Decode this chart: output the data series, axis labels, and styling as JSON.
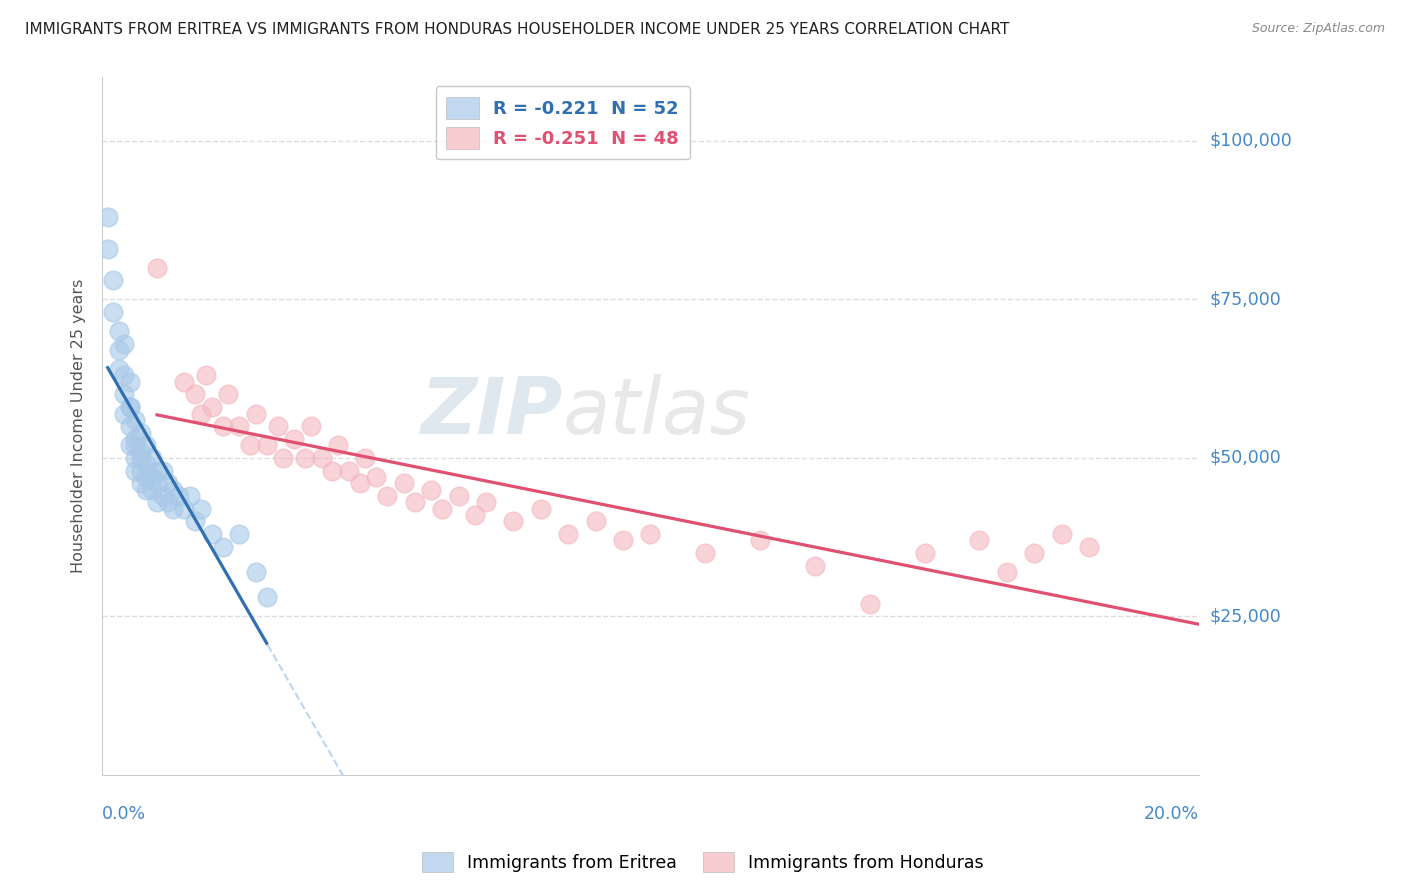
{
  "title": "IMMIGRANTS FROM ERITREA VS IMMIGRANTS FROM HONDURAS HOUSEHOLDER INCOME UNDER 25 YEARS CORRELATION CHART",
  "source": "Source: ZipAtlas.com",
  "ylabel": "Householder Income Under 25 years",
  "ytick_labels": [
    "$25,000",
    "$50,000",
    "$75,000",
    "$100,000"
  ],
  "ytick_values": [
    25000,
    50000,
    75000,
    100000
  ],
  "ylim": [
    0,
    110000
  ],
  "xlim": [
    0.0,
    0.2
  ],
  "legend_entries": [
    {
      "label": "R = -0.221  N = 52",
      "color": "#a8c8e8"
    },
    {
      "label": "R = -0.251  N = 48",
      "color": "#f4b8c0"
    }
  ],
  "watermark_zip": "ZIP",
  "watermark_atlas": "atlas",
  "eritrea_x": [
    0.001,
    0.001,
    0.002,
    0.002,
    0.003,
    0.003,
    0.003,
    0.004,
    0.004,
    0.004,
    0.004,
    0.005,
    0.005,
    0.005,
    0.005,
    0.005,
    0.006,
    0.006,
    0.006,
    0.006,
    0.006,
    0.007,
    0.007,
    0.007,
    0.007,
    0.007,
    0.008,
    0.008,
    0.008,
    0.008,
    0.009,
    0.009,
    0.009,
    0.01,
    0.01,
    0.01,
    0.011,
    0.011,
    0.012,
    0.012,
    0.013,
    0.013,
    0.014,
    0.015,
    0.016,
    0.017,
    0.018,
    0.02,
    0.022,
    0.025,
    0.028,
    0.03
  ],
  "eritrea_y": [
    88000,
    83000,
    78000,
    73000,
    70000,
    67000,
    64000,
    68000,
    63000,
    60000,
    57000,
    62000,
    58000,
    55000,
    52000,
    58000,
    56000,
    53000,
    50000,
    48000,
    52000,
    54000,
    51000,
    48000,
    46000,
    50000,
    52000,
    49000,
    47000,
    45000,
    50000,
    47000,
    45000,
    48000,
    46000,
    43000,
    48000,
    44000,
    46000,
    43000,
    45000,
    42000,
    44000,
    42000,
    44000,
    40000,
    42000,
    38000,
    36000,
    38000,
    32000,
    28000
  ],
  "honduras_x": [
    0.01,
    0.015,
    0.017,
    0.018,
    0.019,
    0.02,
    0.022,
    0.023,
    0.025,
    0.027,
    0.028,
    0.03,
    0.032,
    0.033,
    0.035,
    0.037,
    0.038,
    0.04,
    0.042,
    0.043,
    0.045,
    0.047,
    0.048,
    0.05,
    0.052,
    0.055,
    0.057,
    0.06,
    0.062,
    0.065,
    0.068,
    0.07,
    0.075,
    0.08,
    0.085,
    0.09,
    0.095,
    0.1,
    0.11,
    0.12,
    0.13,
    0.14,
    0.15,
    0.16,
    0.165,
    0.17,
    0.175,
    0.18
  ],
  "honduras_y": [
    80000,
    62000,
    60000,
    57000,
    63000,
    58000,
    55000,
    60000,
    55000,
    52000,
    57000,
    52000,
    55000,
    50000,
    53000,
    50000,
    55000,
    50000,
    48000,
    52000,
    48000,
    46000,
    50000,
    47000,
    44000,
    46000,
    43000,
    45000,
    42000,
    44000,
    41000,
    43000,
    40000,
    42000,
    38000,
    40000,
    37000,
    38000,
    35000,
    37000,
    33000,
    27000,
    35000,
    37000,
    32000,
    35000,
    38000,
    36000
  ],
  "eritrea_color": "#a8c8e8",
  "honduras_color": "#f4b8c0",
  "eritrea_line_color": "#3070b0",
  "honduras_line_color": "#e05070",
  "dashed_line_color": "#aaccee",
  "background_color": "#ffffff",
  "grid_color": "#dddddd",
  "title_color": "#222222",
  "source_color": "#888888",
  "axis_label_color": "#4488cc",
  "figsize": [
    14.06,
    8.92
  ],
  "dpi": 100
}
